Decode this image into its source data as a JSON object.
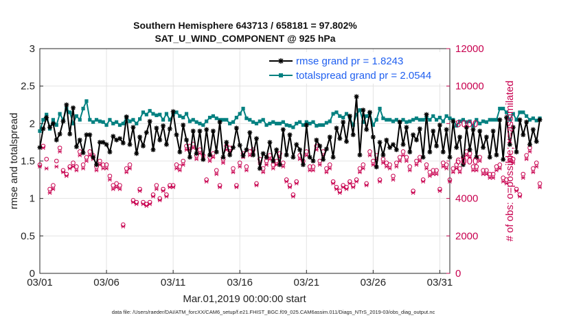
{
  "chart_data": {
    "type": "line",
    "title_line1": "Southern Hemisphere 643713 / 658181 = 97.802%",
    "title_line2": "SAT_U_WIND_COMPONENT @ 925 hPa",
    "xlabel": "Mar.01,2019 00:00:00 start",
    "ylabel_left": "rmse and totalspread",
    "ylabel_right": "# of obs: o=possible; ×=assimilated",
    "x_tick_labels": [
      "03/01",
      "03/06",
      "03/11",
      "03/16",
      "03/21",
      "03/26",
      "03/31"
    ],
    "x_tick_days": [
      0,
      5,
      10,
      15,
      20,
      25,
      30
    ],
    "xlim": [
      0,
      30.75
    ],
    "y_left_ticks": [
      "0",
      "0.5",
      "1",
      "1.5",
      "2",
      "2.5",
      "3"
    ],
    "ylim_left": [
      0,
      3
    ],
    "y_right_ticks": [
      "0",
      "2000",
      "4000",
      "6000",
      "8000",
      "10000",
      "12000"
    ],
    "ylim_right": [
      0,
      12000
    ],
    "grid": true,
    "legend": [
      {
        "name": "rmse grand pr = 1.8243",
        "color": "#000000",
        "marker": "asterisk"
      },
      {
        "name": "totalspread grand pr = 2.0544",
        "color": "#008080",
        "marker": "square"
      }
    ],
    "series": [
      {
        "name": "rmse",
        "color": "#000000",
        "x_start": 0,
        "x_step": 0.25,
        "values": [
          1.68,
          1.93,
          2.08,
          1.95,
          2.0,
          1.78,
          1.86,
          2.03,
          2.25,
          1.86,
          2.21,
          1.69,
          1.78,
          1.61,
          1.85,
          1.85,
          1.55,
          1.45,
          1.75,
          1.75,
          1.72,
          1.62,
          1.83,
          1.78,
          1.8,
          1.74,
          2.09,
          1.72,
          1.95,
          1.6,
          1.82,
          1.7,
          1.88,
          2.03,
          1.65,
          1.94,
          1.78,
          1.97,
          1.72,
          1.93,
          2.16,
          1.85,
          1.62,
          1.98,
          1.78,
          1.55,
          1.9,
          1.6,
          1.9,
          1.52,
          1.92,
          1.58,
          1.9,
          1.62,
          2.02,
          1.55,
          1.75,
          1.58,
          1.68,
          1.94,
          1.71,
          1.57,
          1.65,
          1.88,
          1.58,
          1.8,
          1.4,
          1.6,
          1.55,
          1.75,
          1.5,
          1.65,
          1.45,
          1.92,
          1.58,
          1.85,
          1.55,
          1.72,
          1.65,
          1.45,
          1.98,
          1.55,
          1.5,
          1.78,
          1.7,
          1.52,
          1.66,
          1.82,
          1.55,
          1.94,
          1.8,
          2.02,
          1.76,
          2.1,
          1.85,
          2.36,
          1.58,
          2.18,
          1.92,
          2.15,
          1.82,
          1.42,
          1.75,
          1.58,
          1.78,
          1.68,
          1.72,
          1.65,
          2.02,
          1.72,
          1.95,
          1.62,
          1.85,
          1.78,
          1.93,
          1.55,
          2.12,
          1.62,
          1.9,
          1.7,
          1.98,
          1.62,
          1.92,
          1.55,
          2.03,
          1.68,
          1.82,
          1.45,
          1.95,
          1.65,
          1.92,
          1.55,
          1.9,
          1.68,
          1.82,
          1.55,
          1.9,
          1.58,
          2.05,
          1.52,
          2.08,
          1.72,
          1.95,
          1.62,
          2.05,
          1.85,
          2.02,
          1.72,
          1.92,
          1.76,
          2.05
        ]
      },
      {
        "name": "totalspread",
        "color": "#008080",
        "x_start": 0,
        "x_step": 0.25,
        "values": [
          1.9,
          2.05,
          2.12,
          1.93,
          2.05,
          1.98,
          2.13,
          2.05,
          2.2,
          2.15,
          2.0,
          2.1,
          2.05,
          2.2,
          2.3,
          2.05,
          2.02,
          2.05,
          2.03,
          2.02,
          1.98,
          2.05,
          2.0,
          2.02,
          1.98,
          2.0,
          2.08,
          2.03,
          2.05,
          2.0,
          2.06,
          2.15,
          2.12,
          2.17,
          2.13,
          2.11,
          2.12,
          2.05,
          2.13,
          2.05,
          2.12,
          2.15,
          2.1,
          2.08,
          2.13,
          2.03,
          2.05,
          2.02,
          2.0,
          1.98,
          2.03,
          2.08,
          2.1,
          2.07,
          2.05,
          2.05,
          2.05,
          2.0,
          2.02,
          2.08,
          2.13,
          2.2,
          2.07,
          2.05,
          2.02,
          2.0,
          2.03,
          2.05,
          1.98,
          2.0,
          2.02,
          2.0,
          2.0,
          2.02,
          1.98,
          1.97,
          1.95,
          2.0,
          2.02,
          1.98,
          2.02,
          2.0,
          2.02,
          1.97,
          1.98,
          1.98,
          2.01,
          2.03,
          2.13,
          2.15,
          2.1,
          2.08,
          2.13,
          2.08,
          1.98,
          2.12,
          2.18,
          2.02,
          2.1,
          2.14,
          1.98,
          2.05,
          2.2,
          2.07,
          2.05,
          2.05,
          2.03,
          2.05,
          2.02,
          2.05,
          2.02,
          2.03,
          2.05,
          2.07,
          2.05,
          2.05,
          2.08,
          2.05,
          2.1,
          2.05,
          2.08,
          2.03,
          2.1,
          2.07,
          2.05,
          1.97,
          2.03,
          2.05,
          2.02,
          2.03,
          1.97,
          2.05,
          2.0,
          2.03,
          2.02,
          2.05,
          2.05,
          2.05,
          2.2,
          2.2,
          2.15,
          2.05,
          2.13,
          2.05,
          2.15,
          2.15,
          2.1,
          2.05,
          2.07,
          2.04,
          2.07
        ]
      }
    ],
    "obs_possible": {
      "name": "possible",
      "color": "#c8004f",
      "marker": "circle",
      "x_start": 0,
      "x_step": 0.25,
      "values": [
        5800,
        6800,
        6100,
        4500,
        4700,
        6000,
        6700,
        5500,
        5300,
        5700,
        5900,
        5700,
        6500,
        5800,
        6200,
        6500,
        6300,
        5700,
        6000,
        5800,
        5800,
        5200,
        4700,
        4800,
        4700,
        2600,
        5600,
        5800,
        3900,
        3800,
        4500,
        3800,
        3700,
        3800,
        4200,
        4700,
        4000,
        4500,
        4200,
        4700,
        4700,
        5800,
        5700,
        6000,
        6800,
        6800,
        6900,
        6300,
        6600,
        6300,
        5000,
        6200,
        6400,
        5500,
        4700,
        6100,
        6800,
        6700,
        5600,
        4700,
        5900,
        6400,
        5700,
        6500,
        6600,
        4800,
        6100,
        5600,
        6000,
        6300,
        5800,
        6000,
        6400,
        5900,
        5000,
        4700,
        4200,
        4900,
        6300,
        6000,
        6500,
        5700,
        5700,
        6800,
        6000,
        6500,
        5600,
        5800,
        4900,
        4600,
        4400,
        4700,
        4600,
        4900,
        4700,
        5000,
        5600,
        5800,
        4800,
        6500,
        6000,
        6300,
        5000,
        6100,
        5900,
        5800,
        5200,
        5900,
        6200,
        6500,
        6200,
        5700,
        4400,
        6000,
        6200,
        5000,
        5800,
        5400,
        5500,
        5500,
        4500,
        5900,
        5800,
        5000,
        5600,
        5800,
        5600,
        6200,
        6500,
        6400,
        5700,
        5700,
        6200,
        5500,
        5500,
        5300,
        5300,
        5700,
        5800,
        5100,
        5000,
        6200,
        6100,
        4500,
        4200,
        5300,
        6300,
        6700,
        5600,
        5900,
        4800
      ]
    },
    "obs_assimilated": {
      "name": "assimilated",
      "color": "#c8004f",
      "marker": "x",
      "x_start": 0,
      "x_step": 0.25,
      "values": [
        5700,
        6700,
        5600,
        4300,
        4500,
        5700,
        6500,
        5400,
        5200,
        5600,
        5700,
        5500,
        6300,
        5600,
        6000,
        6300,
        6100,
        5500,
        5800,
        5600,
        5600,
        5000,
        4500,
        4600,
        4500,
        2500,
        5400,
        5600,
        3800,
        3700,
        4400,
        3700,
        3600,
        3700,
        4100,
        4500,
        3900,
        4400,
        4100,
        4600,
        4600,
        5600,
        5500,
        5800,
        6600,
        6600,
        6700,
        6100,
        6400,
        6100,
        4900,
        6000,
        6200,
        5300,
        4600,
        5900,
        6600,
        6500,
        5400,
        4600,
        5700,
        6200,
        5500,
        6300,
        6400,
        4700,
        5900,
        5400,
        5800,
        6100,
        5600,
        5800,
        6200,
        5700,
        4900,
        4600,
        4100,
        4800,
        6100,
        5800,
        6300,
        5500,
        5500,
        6600,
        5800,
        6300,
        5400,
        5600,
        4800,
        4500,
        4300,
        4600,
        4500,
        4800,
        4600,
        4900,
        5400,
        5600,
        4700,
        6300,
        5800,
        6100,
        4900,
        5900,
        5700,
        5600,
        5000,
        5700,
        6000,
        6300,
        6000,
        5500,
        4300,
        5800,
        6000,
        4900,
        5600,
        5200,
        5300,
        5300,
        4400,
        5700,
        5600,
        4900,
        5400,
        5600,
        5400,
        6000,
        6300,
        6200,
        5500,
        5500,
        6000,
        5300,
        5300,
        5100,
        5100,
        5500,
        5600,
        4900,
        4800,
        6000,
        5900,
        4400,
        4100,
        5100,
        6100,
        6500,
        5400,
        5700,
        4600
      ]
    },
    "footer": "data file: /Users/raeder/DAI/ATM_forcXX/CAM6_setup/f.e21.FHIST_BGC.f09_025.CAM6assim.011/Diags_NTrS_2019-03/obs_diag_output.nc"
  }
}
